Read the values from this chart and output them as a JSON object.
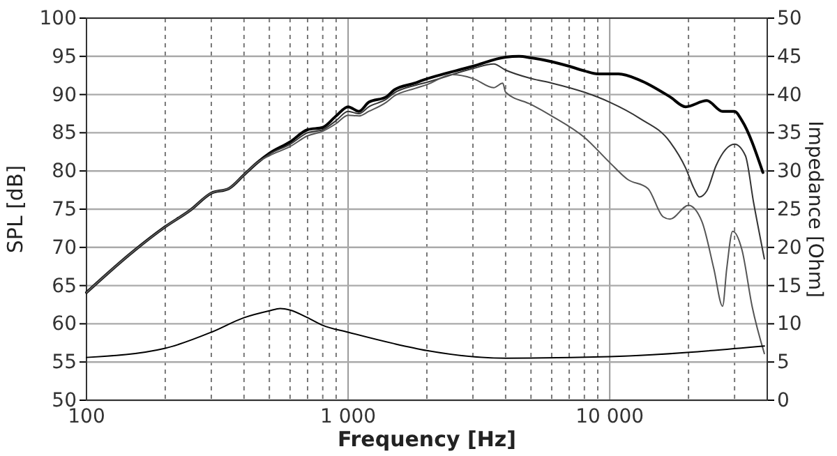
{
  "chart_data": {
    "type": "line",
    "xlabel": "Frequency [Hz]",
    "ylabel": "SPL [dB]",
    "y2label": "Impedance [Ohm]",
    "log": "x",
    "grid": true,
    "xlim": [
      100,
      40000
    ],
    "xticks": [
      {
        "value": 100,
        "label": "100"
      },
      {
        "value": 200,
        "label": null
      },
      {
        "value": 300,
        "label": null
      },
      {
        "value": 400,
        "label": null
      },
      {
        "value": 500,
        "label": null
      },
      {
        "value": 600,
        "label": null
      },
      {
        "value": 700,
        "label": null
      },
      {
        "value": 800,
        "label": null
      },
      {
        "value": 900,
        "label": null
      },
      {
        "value": 1000,
        "label": "1 000"
      },
      {
        "value": 2000,
        "label": null
      },
      {
        "value": 3000,
        "label": null
      },
      {
        "value": 4000,
        "label": null
      },
      {
        "value": 5000,
        "label": null
      },
      {
        "value": 6000,
        "label": null
      },
      {
        "value": 7000,
        "label": null
      },
      {
        "value": 8000,
        "label": null
      },
      {
        "value": 9000,
        "label": null
      },
      {
        "value": 10000,
        "label": "10 000"
      },
      {
        "value": 20000,
        "label": null
      },
      {
        "value": 30000,
        "label": null
      }
    ],
    "ylim": [
      50,
      100
    ],
    "yticks": [
      50,
      55,
      60,
      65,
      70,
      75,
      80,
      85,
      90,
      95,
      100
    ],
    "y2lim": [
      0,
      50
    ],
    "y2ticks": [
      0,
      5,
      10,
      15,
      20,
      25,
      30,
      35,
      40,
      45,
      50
    ],
    "series": [
      {
        "color": "#000000",
        "x": [
          100,
          150,
          200,
          250,
          300,
          350,
          400,
          450,
          500,
          600,
          700,
          800,
          900,
          1000,
          1100,
          1200,
          1400,
          1500,
          1800,
          1900,
          3000,
          4000,
          4500,
          5000,
          6000,
          7000,
          8000,
          9000,
          10800,
          13000,
          17000,
          19500,
          23500,
          27000,
          30000,
          32000,
          38500
        ],
        "values": [
          64.1,
          69.4,
          72.7,
          74.9,
          77.1,
          77.7,
          79.5,
          81.1,
          82.3,
          83.8,
          85.4,
          85.7,
          87.2,
          88.4,
          87.8,
          89,
          89.7,
          90.6,
          91.5,
          91.8,
          93.7,
          94.9,
          95,
          94.8,
          94.3,
          93.7,
          93.1,
          92.7,
          92.7,
          91.9,
          89.7,
          88.4,
          89.2,
          87.8,
          87.8,
          86.6,
          79.8
        ]
      },
      {
        "color": "#333333",
        "x": [
          100,
          150,
          200,
          250,
          300,
          350,
          400,
          450,
          500,
          600,
          700,
          800,
          900,
          1000,
          1100,
          1200,
          1400,
          1500,
          1800,
          2000,
          3000,
          3600,
          4000,
          5000,
          6000,
          8000,
          10000,
          13000,
          17000,
          19500,
          21000,
          22000,
          23500,
          25500,
          30000,
          33000,
          35500,
          39000
        ],
        "values": [
          64.1,
          69.4,
          72.7,
          74.9,
          77.1,
          77.7,
          79.5,
          81.1,
          82.2,
          83.5,
          85,
          85.4,
          86.6,
          87.8,
          87.5,
          88.4,
          89.4,
          90.2,
          91.2,
          91.6,
          93.4,
          94,
          93.2,
          92.1,
          91.5,
          90.3,
          89,
          86.9,
          83.8,
          80.4,
          77.7,
          76.6,
          77.4,
          80.7,
          83.5,
          82,
          75.8,
          68.5
        ]
      },
      {
        "color": "#555555",
        "x": [
          100,
          150,
          200,
          250,
          300,
          350,
          400,
          450,
          500,
          600,
          700,
          800,
          900,
          1000,
          1100,
          1200,
          1400,
          1500,
          1800,
          2000,
          2500,
          3000,
          3600,
          3900,
          4000,
          5000,
          6000,
          8000,
          10000,
          11700,
          14000,
          16000,
          17000,
          20000,
          22500,
          25000,
          27000,
          28000,
          29500,
          32000,
          35000,
          39000
        ],
        "values": [
          64.1,
          69.4,
          72.7,
          74.9,
          77.1,
          77.7,
          79.5,
          81.1,
          82,
          83.2,
          84.6,
          85.2,
          86.2,
          87.3,
          87.2,
          87.8,
          89,
          89.8,
          90.8,
          91.3,
          92.6,
          92.1,
          90.9,
          91.5,
          90.3,
          88.7,
          87.2,
          84.4,
          81.1,
          78.9,
          77.7,
          74,
          73.7,
          75.5,
          73.4,
          67.2,
          62.3,
          67.2,
          72.1,
          69.7,
          62.3,
          56.1
        ]
      },
      {
        "color": "#000000",
        "axis": "y2",
        "x": [
          100,
          200,
          300,
          400,
          500,
          550,
          600,
          700,
          800,
          1000,
          1500,
          2000,
          4000,
          10000,
          39000
        ],
        "values": [
          5.6,
          6.8,
          8.9,
          10.8,
          11.7,
          12,
          11.8,
          10.8,
          9.8,
          8.9,
          7.4,
          6.5,
          5.5,
          5.7,
          7.1
        ]
      }
    ]
  }
}
